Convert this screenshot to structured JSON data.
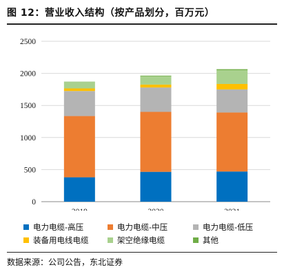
{
  "title": "图 12：营业收入结构（按产品划分，百万元）",
  "source": "数据来源：公司公告，东北证券",
  "chart_data": {
    "type": "bar",
    "stacked": true,
    "categories": [
      "2019",
      "2020",
      "2021"
    ],
    "ylim": [
      0,
      2500
    ],
    "yticks": [
      0,
      500,
      1000,
      1500,
      2000,
      2500
    ],
    "grid": true,
    "legend_position": "bottom",
    "series": [
      {
        "name": "电力电缆-高压",
        "color": "#0070C0",
        "values": [
          380,
          465,
          470
        ]
      },
      {
        "name": "电力电缆-中压",
        "color": "#ED7D31",
        "values": [
          955,
          935,
          920
        ]
      },
      {
        "name": "电力电缆-低压",
        "color": "#B4B4B4",
        "values": [
          390,
          380,
          360
        ]
      },
      {
        "name": "装备用电线电缆",
        "color": "#FFC000",
        "values": [
          40,
          45,
          85
        ]
      },
      {
        "name": "架空绝缘电缆",
        "color": "#A9D18E",
        "values": [
          100,
          130,
          215
        ]
      },
      {
        "name": "其他",
        "color": "#70AD47",
        "values": [
          5,
          10,
          15
        ]
      }
    ]
  }
}
